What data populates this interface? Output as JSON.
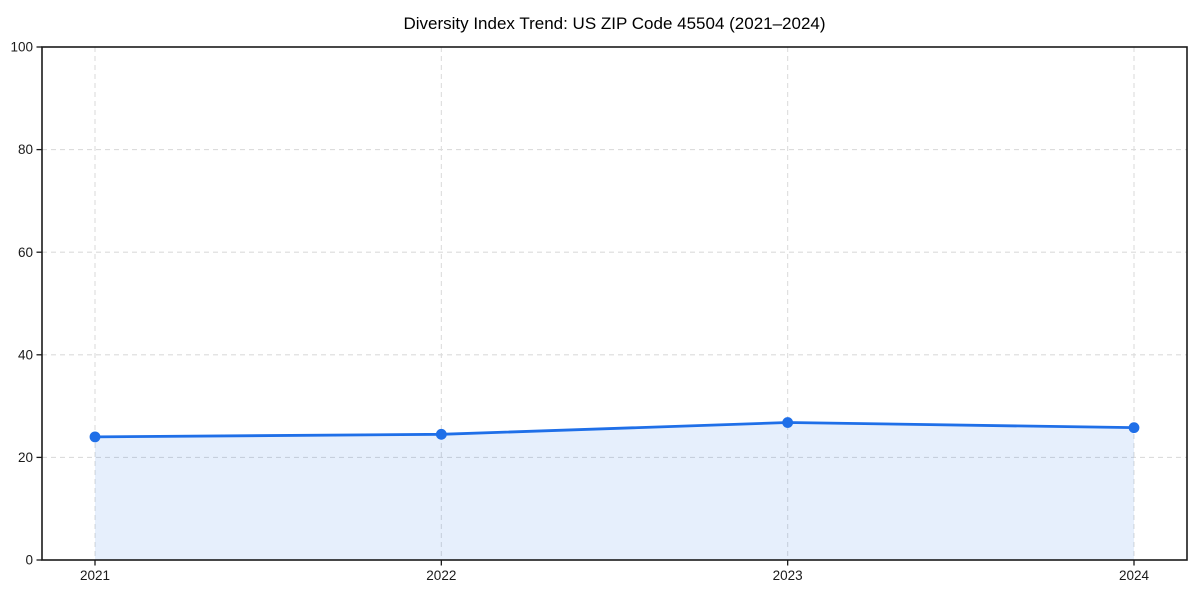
{
  "page": {
    "background": "#ffffff"
  },
  "chart_data": {
    "type": "line",
    "style": "area-line-with-markers",
    "title": "Diversity Index Trend: US ZIP Code 45504 (2021–2024)",
    "categories": [
      "2021",
      "2022",
      "2023",
      "2024"
    ],
    "values": [
      24.0,
      24.5,
      26.8,
      25.8
    ],
    "xlabel": "",
    "ylabel": "",
    "ylim": [
      0,
      100
    ],
    "yticks": [
      0,
      20,
      40,
      60,
      80,
      100
    ],
    "grid": "dashed-both-axes",
    "legend_position": "none",
    "colors": {
      "line": "#1f6fe8",
      "marker": "#1f6fe8",
      "area_fill": "rgba(31,111,232,0.11)",
      "grid": "#dcdcdc",
      "axis": "#1a1a1a",
      "tick_label": "#1a1a1a",
      "title": "#000000",
      "background": "#ffffff"
    }
  }
}
